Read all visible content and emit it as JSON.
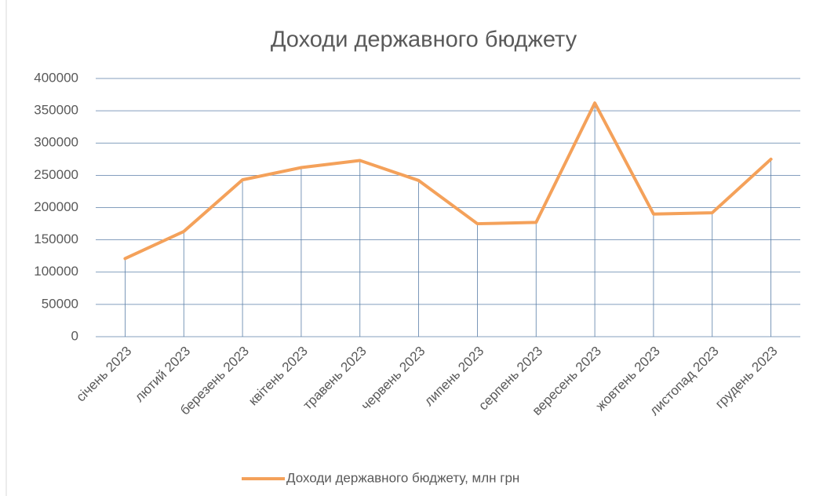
{
  "chart_data": {
    "type": "line",
    "title": "Доходи державного бюджету",
    "categories": [
      "січень 2023",
      "лютий 2023",
      "березень 2023",
      "квітень 2023",
      "травень 2023",
      "червень 2023",
      "липень 2023",
      "серпень 2023",
      "вересень 2023",
      "жовтень 2023",
      "листопад 2023",
      "грудень 2023"
    ],
    "series": [
      {
        "name": "Доходи державного бюджету, млн грн",
        "color": "#f4a15a",
        "values": [
          121000,
          163000,
          243000,
          262000,
          273000,
          242000,
          175000,
          177000,
          362000,
          190000,
          192000,
          275000
        ]
      }
    ],
    "ylim": [
      0,
      400000
    ],
    "yticks": [
      0,
      50000,
      100000,
      150000,
      200000,
      250000,
      300000,
      350000,
      400000
    ],
    "grid": true,
    "drop_lines": true,
    "legend": "bottom"
  }
}
